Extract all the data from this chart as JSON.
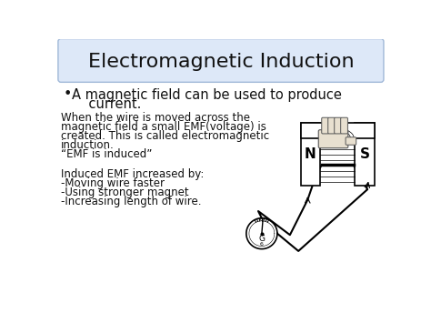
{
  "title": "Electromagnetic Induction",
  "title_box_color": "#dde8f8",
  "title_box_border": "#a0b8d8",
  "bg_color": "#ffffff",
  "title_fontsize": 16,
  "bullet_fontsize": 10.5,
  "body_fontsize": 8.5,
  "text_color": "#111111",
  "bullet_line1": "A magnetic field can be used to produce",
  "bullet_line2": "    current.",
  "body_lines": [
    "When the wire is moved across the",
    "magnetic field a small EMF(voltage) is",
    "created. This is called electromagnetic",
    "induction.",
    "“EMF is induced”"
  ],
  "body2_lines": [
    "Induced EMF increased by:",
    "-Moving wire faster",
    "-Using stronger magnet",
    "-Increasing length of wire."
  ]
}
